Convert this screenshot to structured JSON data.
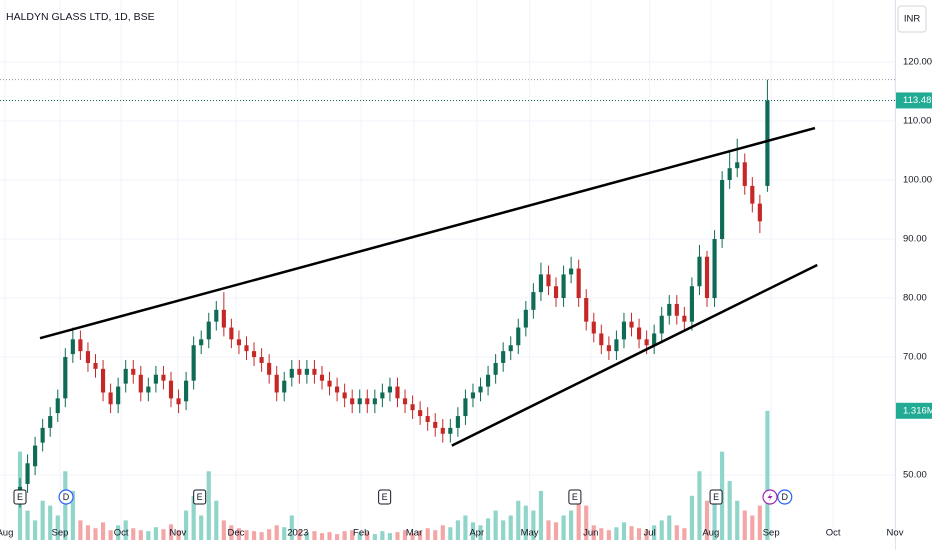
{
  "chart_data": {
    "type": "candlestick",
    "title": "HALDYN GLASS LTD, 1D, BSE",
    "currency": "INR",
    "x": [
      0,
      1,
      2,
      3,
      4,
      5,
      6,
      7,
      8,
      9,
      10,
      11,
      12,
      13,
      14,
      15,
      16,
      17,
      18,
      19,
      20,
      21,
      22,
      23,
      24,
      25,
      26,
      27,
      28,
      29,
      30,
      31,
      32,
      33,
      34,
      35,
      36,
      37,
      38,
      39,
      40,
      41,
      42,
      43,
      44,
      45,
      46,
      47,
      48,
      49,
      50,
      51,
      52,
      53,
      54,
      55,
      56,
      57,
      58,
      59,
      60,
      61,
      62,
      63,
      64,
      65,
      66,
      67,
      68,
      69,
      70,
      71,
      72,
      73,
      74,
      75,
      76,
      77,
      78,
      79,
      80,
      81,
      82,
      83,
      84,
      85,
      86,
      87,
      88,
      89,
      90,
      91,
      92,
      93,
      94,
      95,
      96,
      97,
      98,
      99
    ],
    "open": [
      46,
      48.5,
      51.5,
      55.5,
      58,
      60.5,
      63,
      70.5,
      73,
      71,
      69,
      68,
      64,
      62,
      65.5,
      68,
      67,
      64,
      65.5,
      67,
      66,
      63,
      62.5,
      66,
      72,
      73,
      76,
      78,
      75,
      73,
      72,
      71,
      70,
      69,
      67,
      64,
      66.5,
      68,
      67,
      68,
      67,
      66,
      65,
      64,
      63,
      62,
      63,
      62,
      63,
      64,
      65,
      63,
      62,
      61,
      60,
      59,
      58,
      57,
      58,
      60,
      63,
      64,
      65,
      67,
      69,
      71,
      72,
      75,
      78,
      81,
      84,
      82,
      80,
      84,
      85,
      80,
      76,
      74,
      72,
      71,
      73,
      76,
      75,
      73,
      72,
      74,
      77,
      79,
      77,
      76,
      82,
      87,
      80,
      90,
      100,
      102,
      103,
      99,
      96,
      99
    ],
    "high": [
      49.5,
      53.5,
      56.5,
      59.5,
      61.5,
      64.5,
      71.5,
      75,
      74.5,
      72.5,
      70.5,
      69.5,
      65.5,
      66.5,
      69.5,
      69.5,
      68.5,
      66.5,
      68.5,
      68.5,
      67.5,
      64.5,
      67.5,
      73.5,
      74.5,
      77.5,
      79.5,
      81,
      76.5,
      74.5,
      73.5,
      72.5,
      71.5,
      70.5,
      68.5,
      67.5,
      69.5,
      69.5,
      69.5,
      69.5,
      68.5,
      67.5,
      66.5,
      65.5,
      64.5,
      64.5,
      64.5,
      64.5,
      65.5,
      66.5,
      66.5,
      64.5,
      63.5,
      62.5,
      61.5,
      60.5,
      59.5,
      59.5,
      61.5,
      64.5,
      65.5,
      66.5,
      68.5,
      70.5,
      72.5,
      73.5,
      76.5,
      79.5,
      82.5,
      86,
      85.5,
      83.5,
      85.5,
      87,
      86.5,
      81.5,
      77.5,
      75.5,
      73.5,
      74.5,
      77.5,
      77.5,
      76.5,
      74.5,
      75.5,
      78.5,
      80.5,
      80.5,
      78.5,
      83.5,
      89,
      88,
      91.5,
      101.5,
      105,
      107,
      104.5,
      100.5,
      97.5,
      117
    ],
    "low": [
      44.5,
      47,
      50,
      54,
      56.5,
      59,
      61.5,
      69,
      69.5,
      67.5,
      66.5,
      62.5,
      60.5,
      60.5,
      64,
      65.5,
      62.5,
      62.5,
      64,
      64.5,
      61.5,
      60.5,
      61,
      64.5,
      70.5,
      71.5,
      74.5,
      73.5,
      71.5,
      70.5,
      69.5,
      68.5,
      67.5,
      65.5,
      62.5,
      62.5,
      65,
      65.5,
      65.5,
      65.5,
      64.5,
      63.5,
      62.5,
      61.5,
      60.5,
      60.5,
      60.5,
      60.5,
      61.5,
      62.5,
      61.5,
      60.5,
      59.5,
      58.5,
      57.5,
      56.5,
      55.5,
      55.5,
      56.5,
      58.5,
      61.5,
      62.5,
      63.5,
      65.5,
      67.5,
      69.5,
      70.5,
      73.5,
      76.5,
      79.5,
      80.5,
      78.5,
      78.5,
      82.5,
      78.5,
      74.5,
      72.5,
      70.5,
      69.5,
      69.5,
      71.5,
      73.5,
      71.5,
      70.5,
      70.5,
      72.5,
      75.5,
      75.5,
      74.5,
      74.5,
      80.5,
      78.5,
      78.5,
      88.5,
      98.5,
      100.5,
      97.5,
      94.5,
      91,
      98
    ],
    "close": [
      48,
      52,
      55,
      58,
      60,
      63,
      70,
      73,
      71,
      69,
      68,
      64,
      62,
      65,
      68,
      67,
      64,
      65,
      67,
      66,
      63,
      62,
      66,
      72,
      73,
      76,
      78,
      75,
      73,
      72,
      71,
      70,
      69,
      67,
      64,
      66,
      68,
      67,
      68,
      67,
      66,
      65,
      64,
      63,
      62,
      63,
      62,
      63,
      64,
      65,
      63,
      62,
      61,
      60,
      59,
      58,
      57,
      58,
      60,
      63,
      64,
      65,
      67,
      69,
      71,
      72,
      75,
      78,
      81,
      84,
      82,
      80,
      84,
      85,
      80,
      76,
      74,
      72,
      71,
      73,
      76,
      75,
      73,
      72,
      74,
      77,
      79,
      77,
      76,
      82,
      87,
      80,
      90,
      100,
      102,
      103,
      99,
      96,
      93,
      113.48
    ],
    "volume": [
      900000,
      300000,
      200000,
      400000,
      350000,
      250000,
      700000,
      500000,
      200000,
      150000,
      120000,
      180000,
      100000,
      150000,
      200000,
      120000,
      100000,
      90000,
      130000,
      110000,
      160000,
      100000,
      300000,
      450000,
      250000,
      700000,
      400000,
      200000,
      150000,
      120000,
      100000,
      90000,
      80000,
      110000,
      150000,
      130000,
      250000,
      100000,
      80000,
      90000,
      70000,
      80000,
      60000,
      90000,
      100000,
      70000,
      80000,
      60000,
      90000,
      70000,
      80000,
      100000,
      70000,
      90000,
      120000,
      100000,
      150000,
      130000,
      200000,
      250000,
      180000,
      150000,
      220000,
      300000,
      200000,
      250000,
      400000,
      350000,
      300000,
      500000,
      200000,
      180000,
      250000,
      300000,
      400000,
      350000,
      150000,
      120000,
      100000,
      130000,
      180000,
      140000,
      120000,
      100000,
      150000,
      200000,
      250000,
      150000,
      120000,
      450000,
      700000,
      400000,
      500000,
      900000,
      600000,
      400000,
      300000,
      250000,
      350000,
      1316000
    ],
    "up_color": "#0f6b55",
    "down_color": "#c62828",
    "volume_up_color": "#8fd5c9",
    "volume_down_color": "#f4a6a6",
    "xlim": [
      -2.65,
      115.9
    ],
    "xticks": [
      {
        "value": -2.0,
        "label": "Aug"
      },
      {
        "value": 5.3,
        "label": "Sep"
      },
      {
        "value": 13.4,
        "label": "Oct"
      },
      {
        "value": 20.9,
        "label": "Nov"
      },
      {
        "value": 28.6,
        "label": "Dec"
      },
      {
        "value": 36.8,
        "label": "2023"
      },
      {
        "value": 45.2,
        "label": "Feb"
      },
      {
        "value": 52.2,
        "label": "Mar"
      },
      {
        "value": 60.5,
        "label": "Apr"
      },
      {
        "value": 67.5,
        "label": "May"
      },
      {
        "value": 75.6,
        "label": "Jun"
      },
      {
        "value": 83.4,
        "label": "Jul"
      },
      {
        "value": 91.5,
        "label": "Aug"
      },
      {
        "value": 99.5,
        "label": "Sep"
      },
      {
        "value": 107.7,
        "label": "Oct"
      },
      {
        "value": 115.9,
        "label": "Nov"
      }
    ],
    "ylim": [
      39,
      130.5
    ],
    "yticks": [
      {
        "value": 50,
        "label": "50.00"
      },
      {
        "value": 70,
        "label": "70.00"
      },
      {
        "value": 80,
        "label": "80.00"
      },
      {
        "value": 90,
        "label": "90.00"
      },
      {
        "value": 100,
        "label": "100.00"
      },
      {
        "value": 110,
        "label": "110.00"
      },
      {
        "value": 120,
        "label": "120.00"
      }
    ],
    "y2lim": [
      0,
      5500000
    ],
    "y2ticks": [
      {
        "value": 1316000,
        "label": "1.316M"
      }
    ],
    "grid": true,
    "trendlines": [
      {
        "x": [
          2.65,
          105.3
        ],
        "y": [
          73.2,
          108.8
        ]
      },
      {
        "x": [
          57.2,
          105.6
        ],
        "y": [
          55.0,
          85.6
        ]
      }
    ],
    "events": [
      {
        "x": 0.0,
        "label": "E"
      },
      {
        "x": 6.1,
        "label": "D"
      },
      {
        "x": 23.8,
        "label": "E"
      },
      {
        "x": 48.3,
        "label": "E"
      },
      {
        "x": 73.5,
        "label": "E"
      },
      {
        "x": 92.2,
        "label": "E"
      },
      {
        "x": 101.3,
        "label": "D"
      }
    ]
  }
}
